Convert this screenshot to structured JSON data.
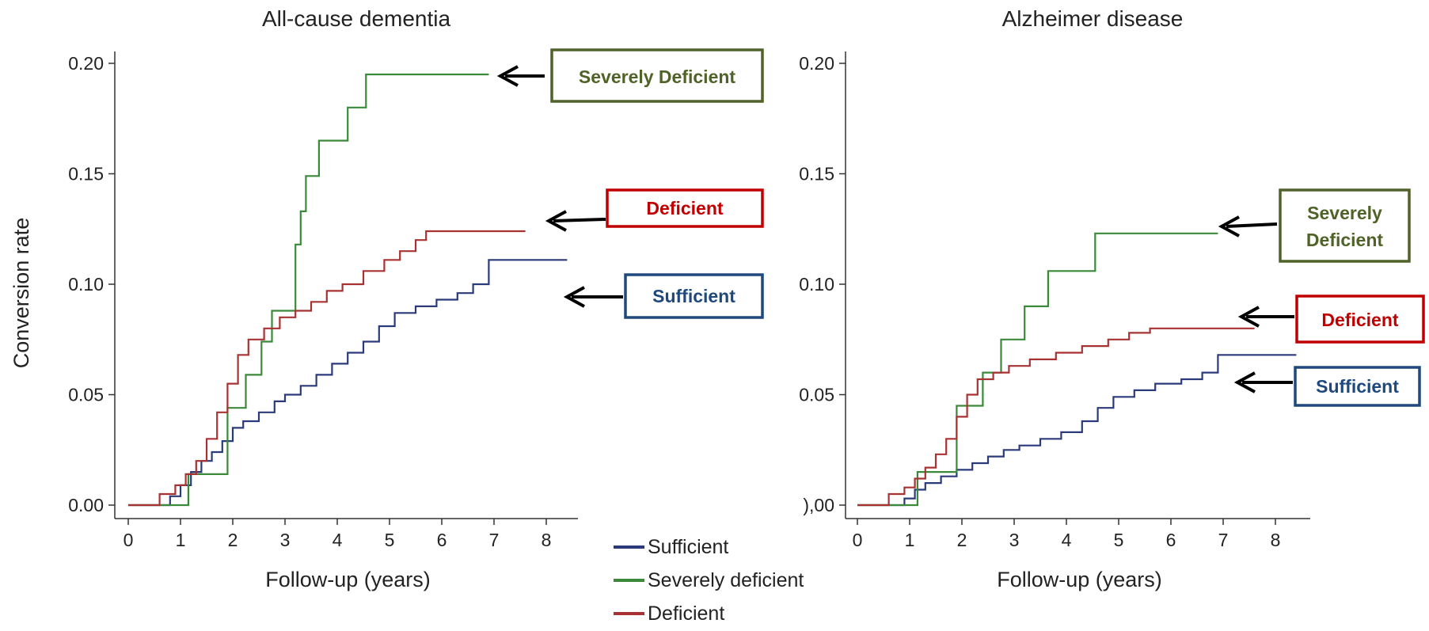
{
  "colors": {
    "sufficient": "#2b3a7a",
    "severely_deficient": "#3a8a3a",
    "deficient": "#a83232",
    "callout_severely": "#4f6228",
    "callout_deficient": "#c00000",
    "callout_sufficient": "#1f497d"
  },
  "legend": [
    {
      "key": "sufficient",
      "label": "Sufficient"
    },
    {
      "key": "severely_deficient",
      "label": "Severely deficient"
    },
    {
      "key": "deficient",
      "label": "Deficient"
    }
  ],
  "chart_data": [
    {
      "type": "line",
      "step": true,
      "title": "All-cause dementia",
      "xlabel": "Follow-up (years)",
      "ylabel": "Conversion rate",
      "xlim": [
        -0.25,
        8.6
      ],
      "ylim": [
        -0.006,
        0.205
      ],
      "xticks": [
        "0",
        "1",
        "2",
        "3",
        "4",
        "5",
        "6",
        "7",
        "8"
      ],
      "yticks": [
        "0.00",
        "0.05",
        "0.10",
        "0.15",
        "0.20"
      ],
      "grid": false,
      "series": [
        {
          "key": "sufficient",
          "name": "Sufficient",
          "x": [
            0,
            0.6,
            0.8,
            1.0,
            1.2,
            1.4,
            1.6,
            1.8,
            2.0,
            2.2,
            2.5,
            2.8,
            3.0,
            3.3,
            3.6,
            3.9,
            4.2,
            4.5,
            4.8,
            5.1,
            5.5,
            5.9,
            6.3,
            6.6,
            6.9,
            8.4
          ],
          "y": [
            0,
            0,
            0.004,
            0.009,
            0.015,
            0.02,
            0.024,
            0.029,
            0.035,
            0.038,
            0.042,
            0.047,
            0.05,
            0.054,
            0.059,
            0.064,
            0.069,
            0.074,
            0.081,
            0.087,
            0.09,
            0.093,
            0.096,
            0.1,
            0.111,
            0.111
          ]
        },
        {
          "key": "severely_deficient",
          "name": "Severely deficient",
          "x": [
            0,
            1.15,
            1.9,
            2.25,
            2.55,
            2.75,
            3.2,
            3.3,
            3.4,
            3.65,
            4.2,
            4.55,
            6.9
          ],
          "y": [
            0,
            0.014,
            0.044,
            0.059,
            0.074,
            0.088,
            0.118,
            0.133,
            0.149,
            0.165,
            0.18,
            0.195,
            0.195
          ]
        },
        {
          "key": "deficient",
          "name": "Deficient",
          "x": [
            0,
            0.6,
            0.9,
            1.1,
            1.3,
            1.5,
            1.7,
            1.9,
            2.1,
            2.3,
            2.6,
            2.9,
            3.2,
            3.5,
            3.8,
            4.1,
            4.5,
            4.9,
            5.2,
            5.5,
            5.7,
            7.6
          ],
          "y": [
            0,
            0.005,
            0.009,
            0.014,
            0.02,
            0.03,
            0.042,
            0.055,
            0.068,
            0.075,
            0.08,
            0.085,
            0.088,
            0.092,
            0.097,
            0.1,
            0.106,
            0.111,
            0.115,
            0.12,
            0.124,
            0.124
          ]
        }
      ],
      "callouts": [
        {
          "key": "severely",
          "lines": [
            "Severely Deficient"
          ]
        },
        {
          "key": "deficient",
          "lines": [
            "Deficient"
          ]
        },
        {
          "key": "sufficient",
          "lines": [
            "Sufficient"
          ]
        }
      ]
    },
    {
      "type": "line",
      "step": true,
      "title": "Alzheimer disease",
      "xlabel": "Follow-up (years)",
      "ylabel": "",
      "xlim": [
        -0.25,
        8.6
      ],
      "ylim": [
        -0.006,
        0.205
      ],
      "xticks": [
        "0",
        "1",
        "2",
        "3",
        "4",
        "5",
        "6",
        "7",
        "8"
      ],
      "yticks": [
        "),00",
        "0.05",
        "0.10",
        "0.15",
        "0.20"
      ],
      "grid": false,
      "series": [
        {
          "key": "sufficient",
          "name": "Sufficient",
          "x": [
            0,
            0.7,
            0.9,
            1.1,
            1.3,
            1.6,
            1.9,
            2.2,
            2.5,
            2.8,
            3.1,
            3.5,
            3.9,
            4.3,
            4.6,
            4.9,
            5.3,
            5.7,
            6.2,
            6.6,
            6.9,
            8.4
          ],
          "y": [
            0,
            0,
            0.003,
            0.007,
            0.01,
            0.013,
            0.016,
            0.019,
            0.022,
            0.025,
            0.027,
            0.03,
            0.033,
            0.038,
            0.044,
            0.049,
            0.052,
            0.055,
            0.057,
            0.06,
            0.068,
            0.068
          ]
        },
        {
          "key": "severely_deficient",
          "name": "Severely deficient",
          "x": [
            0,
            1.15,
            1.9,
            2.4,
            2.75,
            3.2,
            3.65,
            4.55,
            6.9
          ],
          "y": [
            0,
            0.015,
            0.045,
            0.06,
            0.075,
            0.09,
            0.106,
            0.123,
            0.123
          ]
        },
        {
          "key": "deficient",
          "name": "Deficient",
          "x": [
            0,
            0.6,
            0.9,
            1.1,
            1.3,
            1.5,
            1.7,
            1.9,
            2.1,
            2.3,
            2.6,
            2.9,
            3.3,
            3.8,
            4.3,
            4.8,
            5.2,
            5.6,
            7.6
          ],
          "y": [
            0,
            0.005,
            0.008,
            0.012,
            0.017,
            0.023,
            0.03,
            0.04,
            0.05,
            0.057,
            0.06,
            0.063,
            0.066,
            0.069,
            0.072,
            0.075,
            0.078,
            0.08,
            0.08
          ]
        }
      ],
      "callouts": [
        {
          "key": "severely",
          "lines": [
            "Severely",
            "Deficient"
          ]
        },
        {
          "key": "deficient",
          "lines": [
            "Deficient"
          ]
        },
        {
          "key": "sufficient",
          "lines": [
            "Sufficient"
          ]
        }
      ]
    }
  ]
}
